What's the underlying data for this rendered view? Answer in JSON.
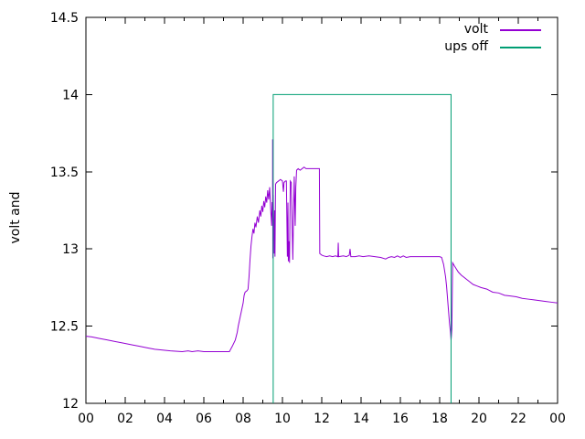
{
  "chart_data": {
    "type": "line",
    "title": "",
    "xlabel": "",
    "ylabel": "volt and",
    "xlim": [
      0,
      24
    ],
    "ylim": [
      12,
      14.5
    ],
    "grid": false,
    "legend_position": "top-right-inside",
    "x_ticks": {
      "label_values": [
        0,
        2,
        4,
        6,
        8,
        10,
        12,
        14,
        16,
        18,
        20,
        22,
        24
      ],
      "labels": [
        "00",
        "02",
        "04",
        "06",
        "08",
        "10",
        "12",
        "14",
        "16",
        "18",
        "20",
        "22",
        "00"
      ],
      "minor_every_hours": 1
    },
    "y_ticks": {
      "values": [
        12,
        12.5,
        13,
        13.5,
        14,
        14.5
      ],
      "labels": [
        "12",
        "12.5",
        "13",
        "13.5",
        "14",
        "14.5"
      ]
    },
    "axis_color": "#000000",
    "background_color": "#ffffff",
    "series": [
      {
        "name": "volt",
        "color": "#9400d3",
        "points": [
          [
            0,
            12.435
          ],
          [
            0.3,
            12.43
          ],
          [
            0.7,
            12.42
          ],
          [
            1.1,
            12.41
          ],
          [
            1.5,
            12.4
          ],
          [
            1.9,
            12.39
          ],
          [
            2.3,
            12.38
          ],
          [
            2.7,
            12.37
          ],
          [
            3.1,
            12.36
          ],
          [
            3.5,
            12.35
          ],
          [
            3.9,
            12.345
          ],
          [
            4.3,
            12.34
          ],
          [
            4.9,
            12.335
          ],
          [
            5.2,
            12.34
          ],
          [
            5.4,
            12.335
          ],
          [
            5.7,
            12.34
          ],
          [
            6.0,
            12.335
          ],
          [
            6.5,
            12.335
          ],
          [
            7.0,
            12.335
          ],
          [
            7.3,
            12.335
          ],
          [
            7.45,
            12.37
          ],
          [
            7.6,
            12.41
          ],
          [
            7.7,
            12.46
          ],
          [
            7.75,
            12.5
          ],
          [
            7.85,
            12.56
          ],
          [
            7.95,
            12.62
          ],
          [
            8.0,
            12.65
          ],
          [
            8.05,
            12.7
          ],
          [
            8.1,
            12.72
          ],
          [
            8.2,
            12.73
          ],
          [
            8.25,
            12.74
          ],
          [
            8.3,
            12.82
          ],
          [
            8.35,
            12.93
          ],
          [
            8.4,
            13.02
          ],
          [
            8.45,
            13.08
          ],
          [
            8.5,
            13.13
          ],
          [
            8.55,
            13.1
          ],
          [
            8.6,
            13.17
          ],
          [
            8.65,
            13.14
          ],
          [
            8.72,
            13.21
          ],
          [
            8.78,
            13.17
          ],
          [
            8.85,
            13.25
          ],
          [
            8.9,
            13.21
          ],
          [
            8.95,
            13.28
          ],
          [
            9.0,
            13.24
          ],
          [
            9.05,
            13.31
          ],
          [
            9.1,
            13.27
          ],
          [
            9.15,
            13.34
          ],
          [
            9.2,
            13.3
          ],
          [
            9.25,
            13.38
          ],
          [
            9.3,
            13.32
          ],
          [
            9.35,
            13.4
          ],
          [
            9.4,
            13.26
          ],
          [
            9.45,
            13.15
          ],
          [
            9.47,
            13.3
          ],
          [
            9.5,
            13.3
          ],
          [
            9.5,
            13.71
          ],
          [
            9.51,
            12.94
          ],
          [
            9.53,
            13.35
          ],
          [
            9.56,
            13.1
          ],
          [
            9.58,
            12.97
          ],
          [
            9.6,
            13.25
          ],
          [
            9.62,
            12.95
          ],
          [
            9.65,
            13.42
          ],
          [
            9.7,
            13.43
          ],
          [
            9.8,
            13.44
          ],
          [
            9.9,
            13.45
          ],
          [
            10.0,
            13.44
          ],
          [
            10.05,
            13.37
          ],
          [
            10.08,
            13.43
          ],
          [
            10.15,
            13.44
          ],
          [
            10.2,
            13.44
          ],
          [
            10.25,
            12.95
          ],
          [
            10.28,
            13.3
          ],
          [
            10.3,
            12.92
          ],
          [
            10.33,
            13.05
          ],
          [
            10.36,
            12.91
          ],
          [
            10.4,
            13.44
          ],
          [
            10.45,
            13.43
          ],
          [
            10.5,
            13.1
          ],
          [
            10.53,
            12.93
          ],
          [
            10.56,
            13.2
          ],
          [
            10.6,
            13.47
          ],
          [
            10.65,
            13.15
          ],
          [
            10.68,
            13.4
          ],
          [
            10.72,
            13.51
          ],
          [
            10.8,
            13.52
          ],
          [
            10.9,
            13.51
          ],
          [
            11.0,
            13.52
          ],
          [
            11.1,
            13.53
          ],
          [
            11.2,
            13.52
          ],
          [
            11.35,
            13.52
          ],
          [
            11.5,
            13.52
          ],
          [
            11.7,
            13.52
          ],
          [
            11.88,
            13.52
          ],
          [
            11.9,
            12.97
          ],
          [
            12.0,
            12.96
          ],
          [
            12.1,
            12.955
          ],
          [
            12.25,
            12.95
          ],
          [
            12.4,
            12.955
          ],
          [
            12.55,
            12.95
          ],
          [
            12.7,
            12.955
          ],
          [
            12.82,
            12.95
          ],
          [
            12.84,
            13.04
          ],
          [
            12.86,
            12.95
          ],
          [
            13.1,
            12.955
          ],
          [
            13.25,
            12.95
          ],
          [
            13.4,
            12.96
          ],
          [
            13.44,
            13.0
          ],
          [
            13.48,
            12.95
          ],
          [
            13.7,
            12.95
          ],
          [
            13.9,
            12.955
          ],
          [
            14.1,
            12.95
          ],
          [
            14.4,
            12.955
          ],
          [
            14.7,
            12.95
          ],
          [
            15.0,
            12.945
          ],
          [
            15.25,
            12.935
          ],
          [
            15.4,
            12.945
          ],
          [
            15.55,
            12.95
          ],
          [
            15.7,
            12.945
          ],
          [
            15.85,
            12.955
          ],
          [
            16.0,
            12.945
          ],
          [
            16.15,
            12.955
          ],
          [
            16.3,
            12.945
          ],
          [
            16.5,
            12.95
          ],
          [
            16.8,
            12.95
          ],
          [
            17.1,
            12.95
          ],
          [
            17.4,
            12.95
          ],
          [
            17.7,
            12.95
          ],
          [
            18.0,
            12.95
          ],
          [
            18.1,
            12.945
          ],
          [
            18.2,
            12.9
          ],
          [
            18.3,
            12.82
          ],
          [
            18.35,
            12.76
          ],
          [
            18.4,
            12.68
          ],
          [
            18.45,
            12.6
          ],
          [
            18.5,
            12.52
          ],
          [
            18.55,
            12.46
          ],
          [
            18.58,
            12.41
          ],
          [
            18.6,
            12.44
          ],
          [
            18.62,
            12.48
          ],
          [
            18.64,
            12.7
          ],
          [
            18.66,
            12.91
          ],
          [
            18.75,
            12.89
          ],
          [
            18.85,
            12.87
          ],
          [
            18.95,
            12.85
          ],
          [
            19.1,
            12.83
          ],
          [
            19.3,
            12.81
          ],
          [
            19.5,
            12.79
          ],
          [
            19.7,
            12.77
          ],
          [
            19.9,
            12.76
          ],
          [
            20.1,
            12.75
          ],
          [
            20.4,
            12.74
          ],
          [
            20.7,
            12.72
          ],
          [
            21.0,
            12.715
          ],
          [
            21.3,
            12.7
          ],
          [
            21.6,
            12.695
          ],
          [
            21.9,
            12.69
          ],
          [
            22.2,
            12.68
          ],
          [
            22.5,
            12.675
          ],
          [
            22.8,
            12.67
          ],
          [
            23.1,
            12.665
          ],
          [
            23.4,
            12.66
          ],
          [
            23.7,
            12.655
          ],
          [
            24.0,
            12.65
          ]
        ]
      },
      {
        "name": "ups off",
        "color": "#009e73",
        "points": [
          [
            9.53,
            12.0
          ],
          [
            9.53,
            14.0
          ],
          [
            18.58,
            14.0
          ],
          [
            18.58,
            12.0
          ]
        ]
      }
    ]
  }
}
